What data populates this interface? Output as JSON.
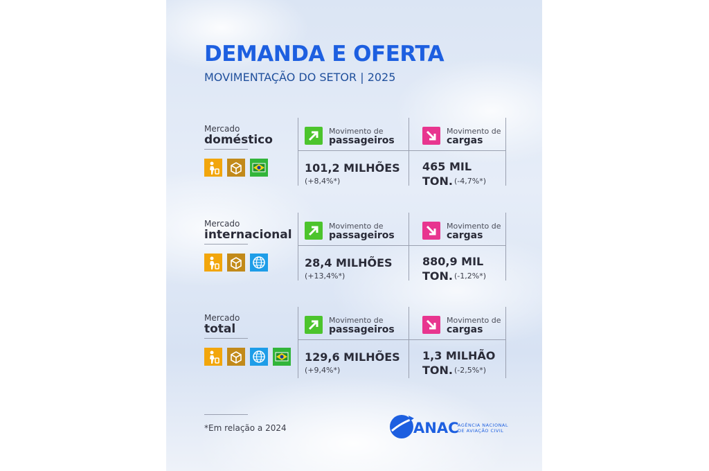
{
  "header": {
    "title": "DEMANDA E OFERTA",
    "subtitle": "MOVIMENTAÇÃO DO SETOR | 2025"
  },
  "markets": [
    {
      "label_small": "Mercado",
      "label_big": "doméstico",
      "passengers": {
        "caption": "Movimento de",
        "title": "passageiros",
        "value": "101,2 MILHÕES",
        "change": "(+8,4%*)"
      },
      "cargo": {
        "caption": "Movimento de",
        "title": "cargas",
        "value": "465 MIL",
        "unit": "TON.",
        "change": "(-4,7%*)"
      }
    },
    {
      "label_small": "Mercado",
      "label_big": "internacional",
      "passengers": {
        "caption": "Movimento de",
        "title": "passageiros",
        "value": "28,4 MILHÕES",
        "change": "(+13,4%*)"
      },
      "cargo": {
        "caption": "Movimento de",
        "title": "cargas",
        "value": "880,9 MIL",
        "unit": "TON.",
        "change": "(-1,2%*)"
      }
    },
    {
      "label_small": "Mercado",
      "label_big": "total",
      "passengers": {
        "caption": "Movimento de",
        "title": "passageiros",
        "value": "129,6 MILHÕES",
        "change": "(+9,4%*)"
      },
      "cargo": {
        "caption": "Movimento de",
        "title": "cargas",
        "value": "1,3 MILHÃO",
        "unit": "TON.",
        "change": "(-2,5%*)"
      }
    }
  ],
  "footnote": "*Em relação a 2024",
  "logo": {
    "name": "ANAC",
    "line1": "AGÊNCIA NACIONAL",
    "line2": "DE AVIAÇÃO CIVIL"
  }
}
